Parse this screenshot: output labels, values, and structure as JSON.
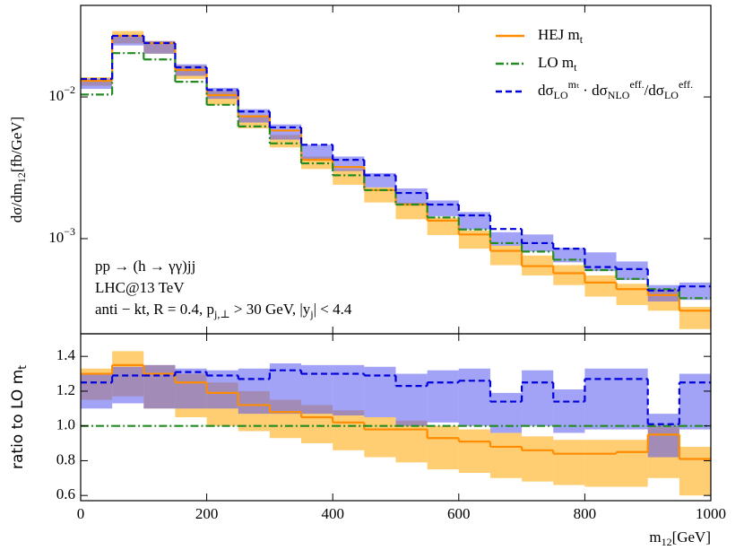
{
  "chart_data": [
    {
      "type": "histogram",
      "ylabel": "dσ/dm_{12}[fb/GeV]",
      "log_scale": true,
      "legend": "upper right",
      "annotations": [
        "pp → (h → γγ)jj",
        "LHC@13 TeV",
        "anti − kt, R = 0.4, p_{j,⊥} > 30 GeV, |y_{j}| < 4.4"
      ],
      "bins": [
        0,
        50,
        100,
        150,
        200,
        250,
        300,
        350,
        400,
        450,
        500,
        550,
        600,
        650,
        700,
        750,
        800,
        850,
        900,
        950,
        1000
      ],
      "xlim": [
        0,
        1000
      ],
      "xticks": [
        0,
        200,
        400,
        600,
        800,
        1000
      ],
      "ylim": [
        0.000213,
        0.0443
      ],
      "yticks": [
        {
          "value": 0.01,
          "label": "10^{−2}"
        },
        {
          "value": 0.001,
          "label": "10^{−3}"
        }
      ],
      "series": [
        {
          "name": "HEJ m_{t}",
          "color": "#ff8c00",
          "style": "solid",
          "values": [
            0.013,
            0.027,
            0.024,
            0.0155,
            0.0103,
            0.0073,
            0.0058,
            0.0036,
            0.0032,
            0.0022,
            0.00174,
            0.00134,
            0.00107,
            0.00082,
            0.00064,
            0.00057,
            0.00049,
            0.00044,
            0.0004,
            0.00031
          ],
          "band_color": "#ffa500",
          "band_low": [
            0.012,
            0.0239,
            0.0202,
            0.0134,
            0.0088,
            0.006,
            0.0044,
            0.0031,
            0.0024,
            0.0018,
            0.00137,
            0.00106,
            0.00085,
            0.00065,
            0.00055,
            0.00047,
            0.00039,
            0.00034,
            0.00031,
            0.00023
          ],
          "band_high": [
            0.0138,
            0.0292,
            0.0248,
            0.0166,
            0.011,
            0.0074,
            0.0054,
            0.0038,
            0.0031,
            0.0023,
            0.00179,
            0.00141,
            0.00114,
            0.00089,
            0.00076,
            0.00065,
            0.00055,
            0.00048,
            0.00044,
            0.00033
          ]
        },
        {
          "name": "LO m_{t}",
          "color": "#228b22",
          "style": "dashdot",
          "values": [
            0.0104,
            0.0204,
            0.0184,
            0.0128,
            0.0088,
            0.0062,
            0.0047,
            0.0034,
            0.0028,
            0.0022,
            0.00174,
            0.00141,
            0.00116,
            0.00093,
            0.00081,
            0.00071,
            0.0006,
            0.00052,
            0.00044,
            0.00038
          ]
        },
        {
          "name": "dσ_{LO}^{mₜ} · dσ_{NLO}^{eff.}/dσ_{LO}^{eff.}",
          "color": "#0000dd",
          "style": "dashed",
          "values": [
            0.0134,
            0.027,
            0.024,
            0.0162,
            0.0112,
            0.0079,
            0.0061,
            0.0046,
            0.0036,
            0.0028,
            0.0021,
            0.00174,
            0.00146,
            0.00117,
            0.00093,
            0.00085,
            0.00063,
            0.00061,
            0.00043,
            0.00046
          ],
          "band_color": "#5555ee",
          "band_low": [
            0.0114,
            0.0231,
            0.0202,
            0.0141,
            0.0097,
            0.0066,
            0.005,
            0.0036,
            0.003,
            0.0023,
            0.00174,
            0.00144,
            0.00116,
            0.00089,
            0.00081,
            0.00068,
            0.00059,
            0.00051,
            0.00036,
            0.00037
          ],
          "band_high": [
            0.0135,
            0.0273,
            0.0248,
            0.017,
            0.0116,
            0.0082,
            0.0064,
            0.0046,
            0.0038,
            0.0029,
            0.00226,
            0.00186,
            0.00154,
            0.00111,
            0.00107,
            0.00086,
            0.0008,
            0.00069,
            0.00047,
            0.00049
          ]
        }
      ]
    },
    {
      "type": "histogram",
      "ylabel": "ratio to LO m_{t}",
      "xlabel": "m_{12}[GeV]",
      "bins": [
        0,
        50,
        100,
        150,
        200,
        250,
        300,
        350,
        400,
        450,
        500,
        550,
        600,
        650,
        700,
        750,
        800,
        850,
        900,
        950,
        1000
      ],
      "xlim": [
        0,
        1000
      ],
      "xticks": [
        0,
        200,
        400,
        600,
        800,
        1000
      ],
      "ylim": [
        0.57,
        1.53
      ],
      "yticks": [
        0.6,
        0.8,
        {
          "value": 1,
          "label": "1.0"
        },
        1.2,
        1.4
      ],
      "series": [
        {
          "color": "#ff8c00",
          "style": "solid",
          "values": [
            1.3,
            1.35,
            1.3,
            1.25,
            1.19,
            1.12,
            1.08,
            1.05,
            1.02,
            0.98,
            0.98,
            0.93,
            0.91,
            0.88,
            0.86,
            0.84,
            0.84,
            0.85,
            0.95,
            0.81
          ],
          "band_color": "#ffa500",
          "band_low": [
            1.15,
            1.17,
            1.1,
            1.05,
            1.0,
            0.97,
            0.93,
            0.9,
            0.86,
            0.82,
            0.79,
            0.75,
            0.73,
            0.7,
            0.68,
            0.66,
            0.65,
            0.65,
            0.7,
            0.6
          ],
          "band_high": [
            1.33,
            1.43,
            1.35,
            1.3,
            1.25,
            1.2,
            1.15,
            1.12,
            1.09,
            1.05,
            1.03,
            1.0,
            0.98,
            0.96,
            0.94,
            0.92,
            0.92,
            0.92,
            1.0,
            0.88
          ]
        },
        {
          "color": "#228b22",
          "style": "dashdot",
          "values": [
            1,
            1,
            1,
            1,
            1,
            1,
            1,
            1,
            1,
            1,
            1,
            1,
            1,
            1,
            1,
            1,
            1,
            1,
            1,
            1
          ]
        },
        {
          "color": "#0000dd",
          "style": "dashed",
          "values": [
            1.25,
            1.29,
            1.29,
            1.31,
            1.29,
            1.27,
            1.32,
            1.3,
            1.3,
            1.29,
            1.23,
            1.25,
            1.26,
            1.14,
            1.25,
            1.14,
            1.27,
            1.27,
            1.01,
            1.25
          ],
          "band_color": "#5555ee",
          "band_low": [
            1.1,
            1.13,
            1.1,
            1.1,
            1.1,
            1.07,
            1.07,
            1.07,
            1.06,
            1.05,
            1.0,
            1.02,
            1.0,
            0.96,
            1.0,
            0.96,
            0.98,
            0.98,
            0.82,
            0.98
          ],
          "band_high": [
            1.3,
            1.34,
            1.35,
            1.33,
            1.32,
            1.33,
            1.36,
            1.35,
            1.35,
            1.34,
            1.3,
            1.32,
            1.33,
            1.19,
            1.32,
            1.21,
            1.33,
            1.33,
            1.07,
            1.3
          ]
        }
      ]
    }
  ]
}
